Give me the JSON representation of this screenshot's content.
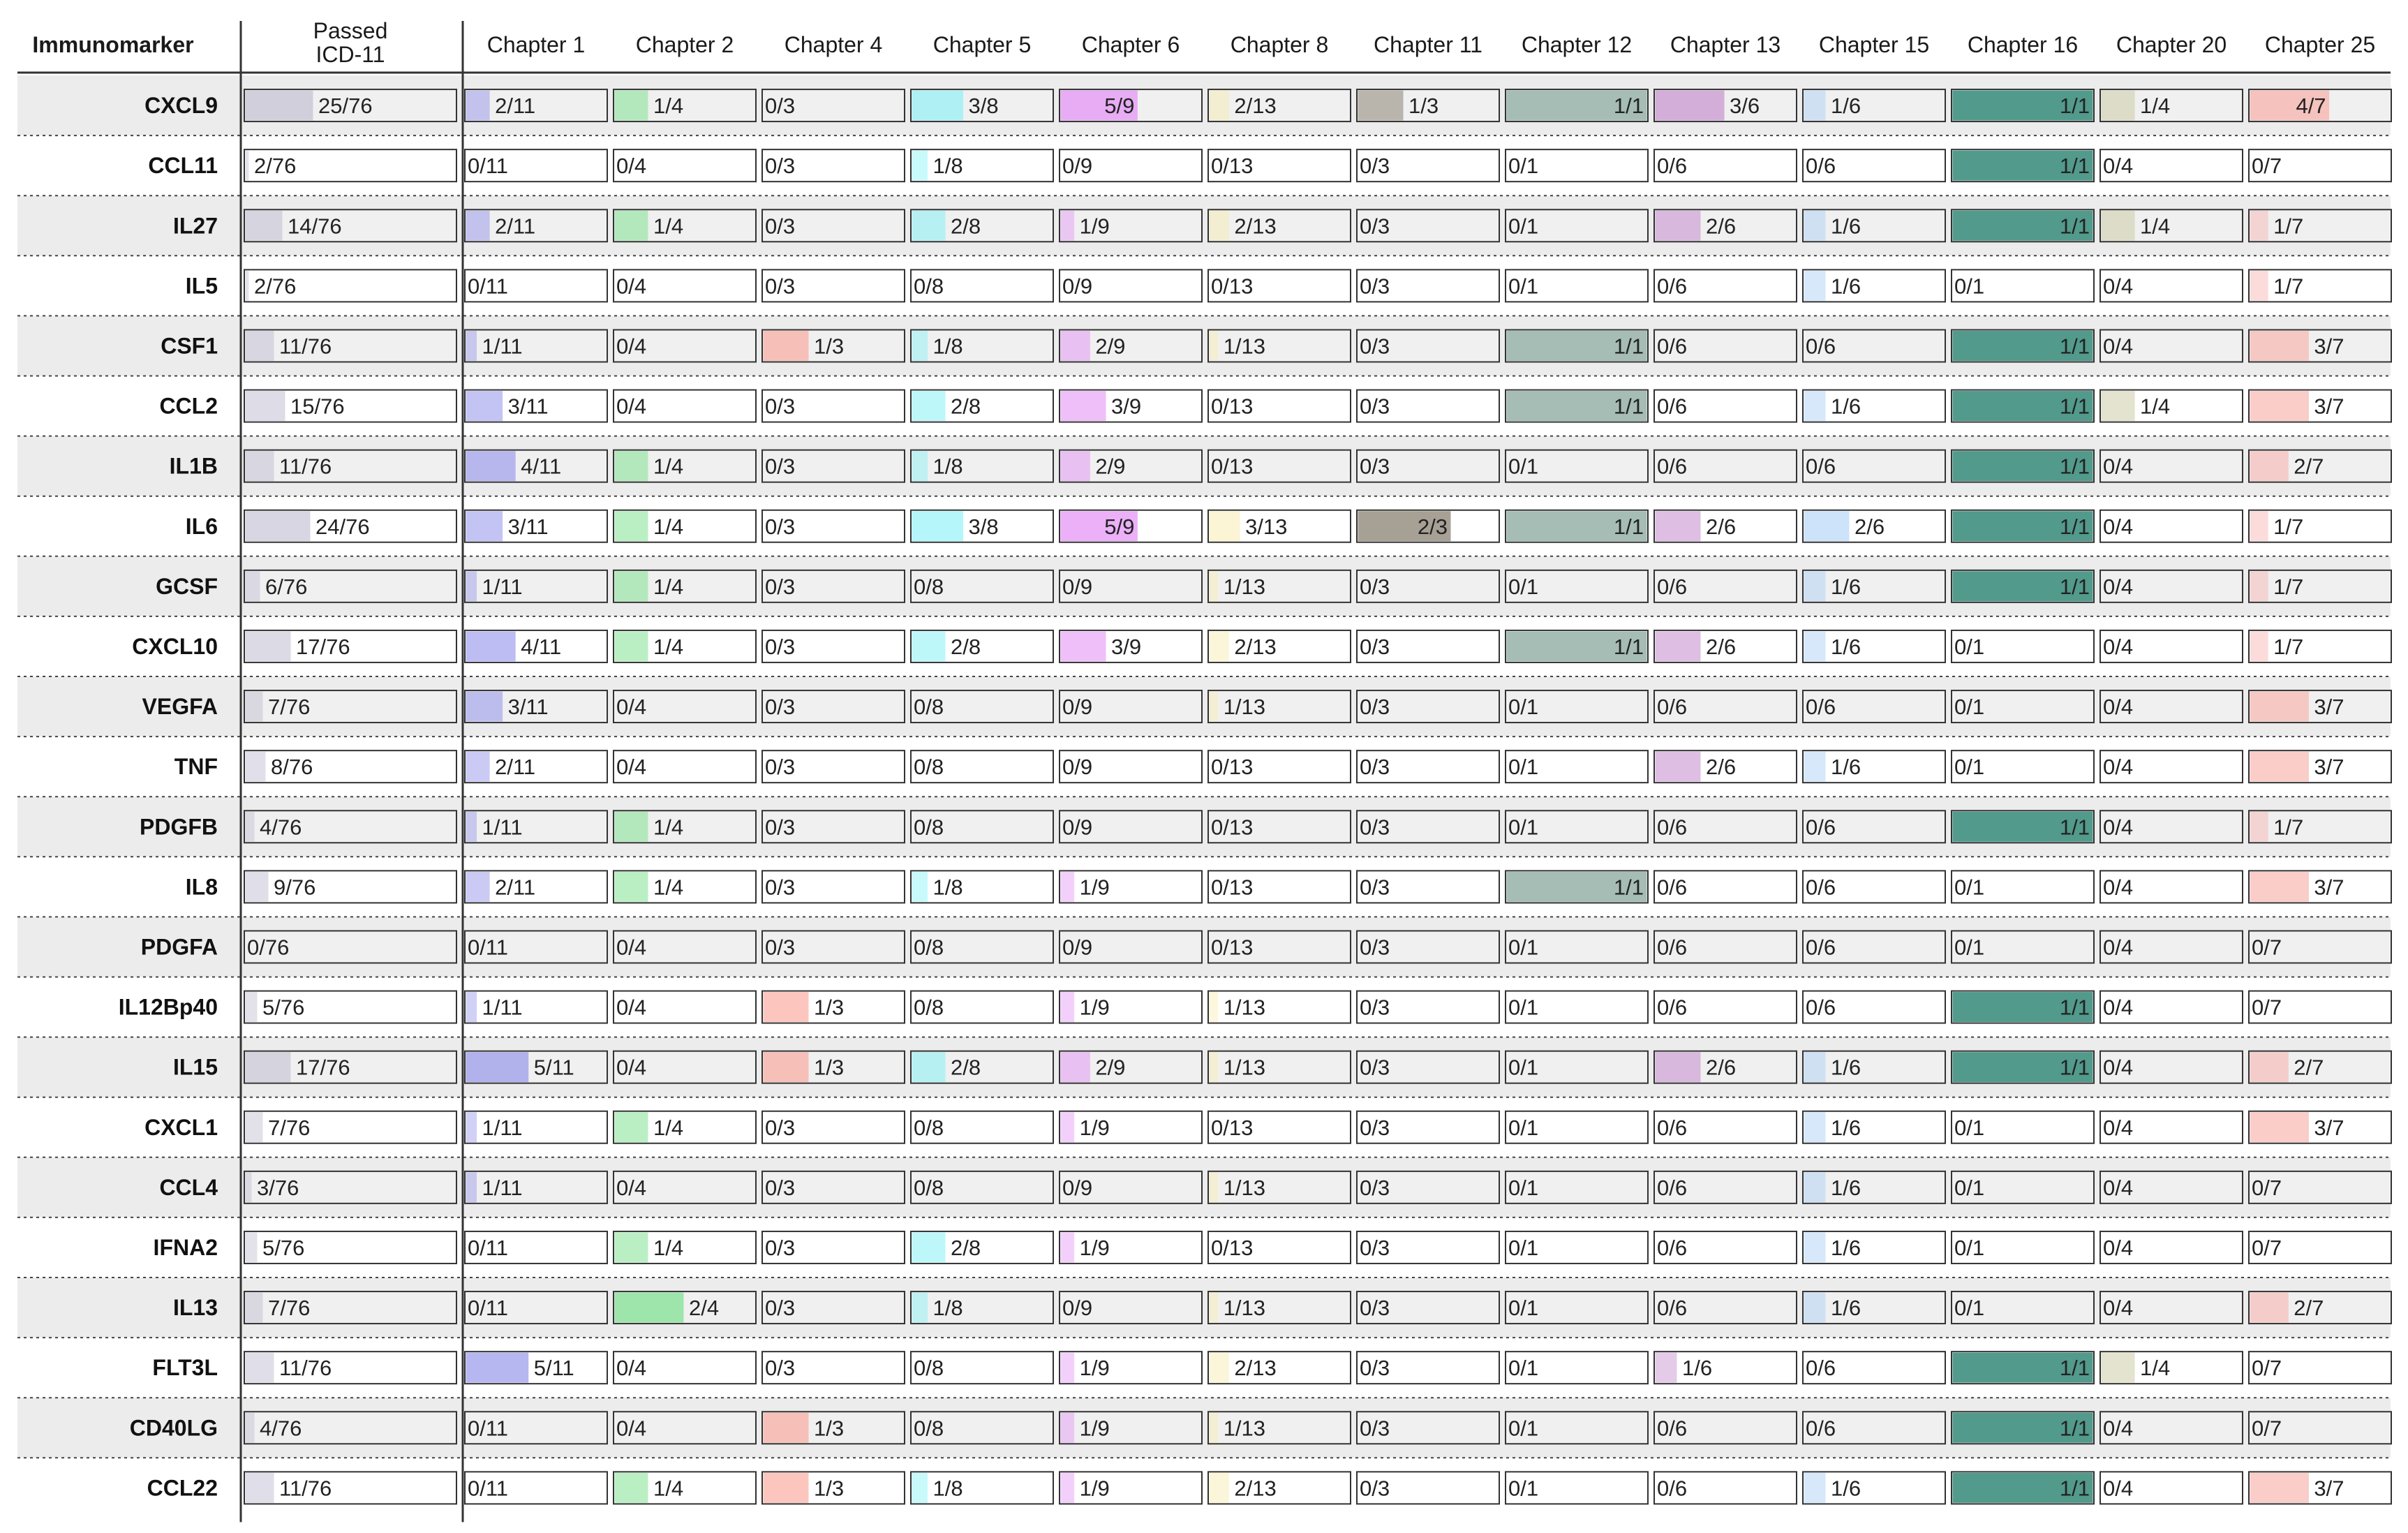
{
  "chart_data": {
    "type": "table",
    "row_header": "Immunomarker",
    "columns": [
      {
        "label": [
          "Passed",
          "ICD-11"
        ],
        "total": 76,
        "color": "#b8b5cc"
      },
      {
        "label": [
          "Chapter 1"
        ],
        "total": 11,
        "color": "#8f8fea"
      },
      {
        "label": [
          "Chapter 2"
        ],
        "total": 4,
        "color": "#78e08c"
      },
      {
        "label": [
          "Chapter 4"
        ],
        "total": 3,
        "color": "#fa9a8e"
      },
      {
        "label": [
          "Chapter 5"
        ],
        "total": 8,
        "color": "#7ff0f5"
      },
      {
        "label": [
          "Chapter 6"
        ],
        "total": 9,
        "color": "#e38ff5"
      },
      {
        "label": [
          "Chapter 8"
        ],
        "total": 13,
        "color": "#f7ecab"
      },
      {
        "label": [
          "Chapter 11"
        ],
        "total": 3,
        "color": "#8e8577"
      },
      {
        "label": [
          "Chapter 12"
        ],
        "total": 1,
        "color": "#a5bdb4"
      },
      {
        "label": [
          "Chapter 13"
        ],
        "total": 6,
        "color": "#c58fcd"
      },
      {
        "label": [
          "Chapter 15"
        ],
        "total": 6,
        "color": "#a7cdf7"
      },
      {
        "label": [
          "Chapter 16"
        ],
        "total": 1,
        "color": "#529a8b"
      },
      {
        "label": [
          "Chapter 20"
        ],
        "total": 4,
        "color": "#c8c8a0"
      },
      {
        "label": [
          "Chapter 25"
        ],
        "total": 7,
        "color": "#f7b0aa"
      }
    ],
    "rows": [
      {
        "marker": "CXCL9",
        "values": [
          25,
          2,
          1,
          0,
          3,
          5,
          2,
          1,
          1,
          3,
          1,
          1,
          1,
          4
        ]
      },
      {
        "marker": "CCL11",
        "values": [
          2,
          0,
          0,
          0,
          1,
          0,
          0,
          0,
          0,
          0,
          0,
          1,
          0,
          0
        ]
      },
      {
        "marker": "IL27",
        "values": [
          14,
          2,
          1,
          0,
          2,
          1,
          2,
          0,
          0,
          2,
          1,
          1,
          1,
          1
        ]
      },
      {
        "marker": "IL5",
        "values": [
          2,
          0,
          0,
          0,
          0,
          0,
          0,
          0,
          0,
          0,
          1,
          0,
          0,
          1
        ]
      },
      {
        "marker": "CSF1",
        "values": [
          11,
          1,
          0,
          1,
          1,
          2,
          1,
          0,
          1,
          0,
          0,
          1,
          0,
          3
        ]
      },
      {
        "marker": "CCL2",
        "values": [
          15,
          3,
          0,
          0,
          2,
          3,
          0,
          0,
          1,
          0,
          1,
          1,
          1,
          3
        ]
      },
      {
        "marker": "IL1B",
        "values": [
          11,
          4,
          1,
          0,
          1,
          2,
          0,
          0,
          0,
          0,
          0,
          1,
          0,
          2
        ]
      },
      {
        "marker": "IL6",
        "values": [
          24,
          3,
          1,
          0,
          3,
          5,
          3,
          2,
          1,
          2,
          2,
          1,
          0,
          1
        ]
      },
      {
        "marker": "GCSF",
        "values": [
          6,
          1,
          1,
          0,
          0,
          0,
          1,
          0,
          0,
          0,
          1,
          1,
          0,
          1
        ]
      },
      {
        "marker": "CXCL10",
        "values": [
          17,
          4,
          1,
          0,
          2,
          3,
          2,
          0,
          1,
          2,
          1,
          0,
          0,
          1
        ]
      },
      {
        "marker": "VEGFA",
        "values": [
          7,
          3,
          0,
          0,
          0,
          0,
          1,
          0,
          0,
          0,
          0,
          0,
          0,
          3
        ]
      },
      {
        "marker": "TNF",
        "values": [
          8,
          2,
          0,
          0,
          0,
          0,
          0,
          0,
          0,
          2,
          1,
          0,
          0,
          3
        ]
      },
      {
        "marker": "PDGFB",
        "values": [
          4,
          1,
          1,
          0,
          0,
          0,
          0,
          0,
          0,
          0,
          0,
          1,
          0,
          1
        ]
      },
      {
        "marker": "IL8",
        "values": [
          9,
          2,
          1,
          0,
          1,
          1,
          0,
          0,
          1,
          0,
          0,
          0,
          0,
          3
        ]
      },
      {
        "marker": "PDGFA",
        "values": [
          0,
          0,
          0,
          0,
          0,
          0,
          0,
          0,
          0,
          0,
          0,
          0,
          0,
          0
        ]
      },
      {
        "marker": "IL12Bp40",
        "values": [
          5,
          1,
          0,
          1,
          0,
          1,
          1,
          0,
          0,
          0,
          0,
          1,
          0,
          0
        ]
      },
      {
        "marker": "IL15",
        "values": [
          17,
          5,
          0,
          1,
          2,
          2,
          1,
          0,
          0,
          2,
          1,
          1,
          0,
          2
        ]
      },
      {
        "marker": "CXCL1",
        "values": [
          7,
          1,
          1,
          0,
          0,
          1,
          0,
          0,
          0,
          0,
          1,
          0,
          0,
          3
        ]
      },
      {
        "marker": "CCL4",
        "values": [
          3,
          1,
          0,
          0,
          0,
          0,
          1,
          0,
          0,
          0,
          1,
          0,
          0,
          0
        ]
      },
      {
        "marker": "IFNA2",
        "values": [
          5,
          0,
          1,
          0,
          2,
          1,
          0,
          0,
          0,
          0,
          1,
          0,
          0,
          0
        ]
      },
      {
        "marker": "IL13",
        "values": [
          7,
          0,
          2,
          0,
          1,
          0,
          1,
          0,
          0,
          0,
          1,
          0,
          0,
          2
        ]
      },
      {
        "marker": "FLT3L",
        "values": [
          11,
          5,
          0,
          0,
          0,
          1,
          2,
          0,
          0,
          1,
          0,
          1,
          1,
          0
        ]
      },
      {
        "marker": "CD40LG",
        "values": [
          4,
          0,
          0,
          1,
          0,
          1,
          1,
          0,
          0,
          0,
          0,
          1,
          0,
          0
        ]
      },
      {
        "marker": "CCL22",
        "values": [
          11,
          0,
          1,
          1,
          1,
          1,
          2,
          0,
          0,
          0,
          1,
          1,
          0,
          3
        ]
      }
    ]
  }
}
